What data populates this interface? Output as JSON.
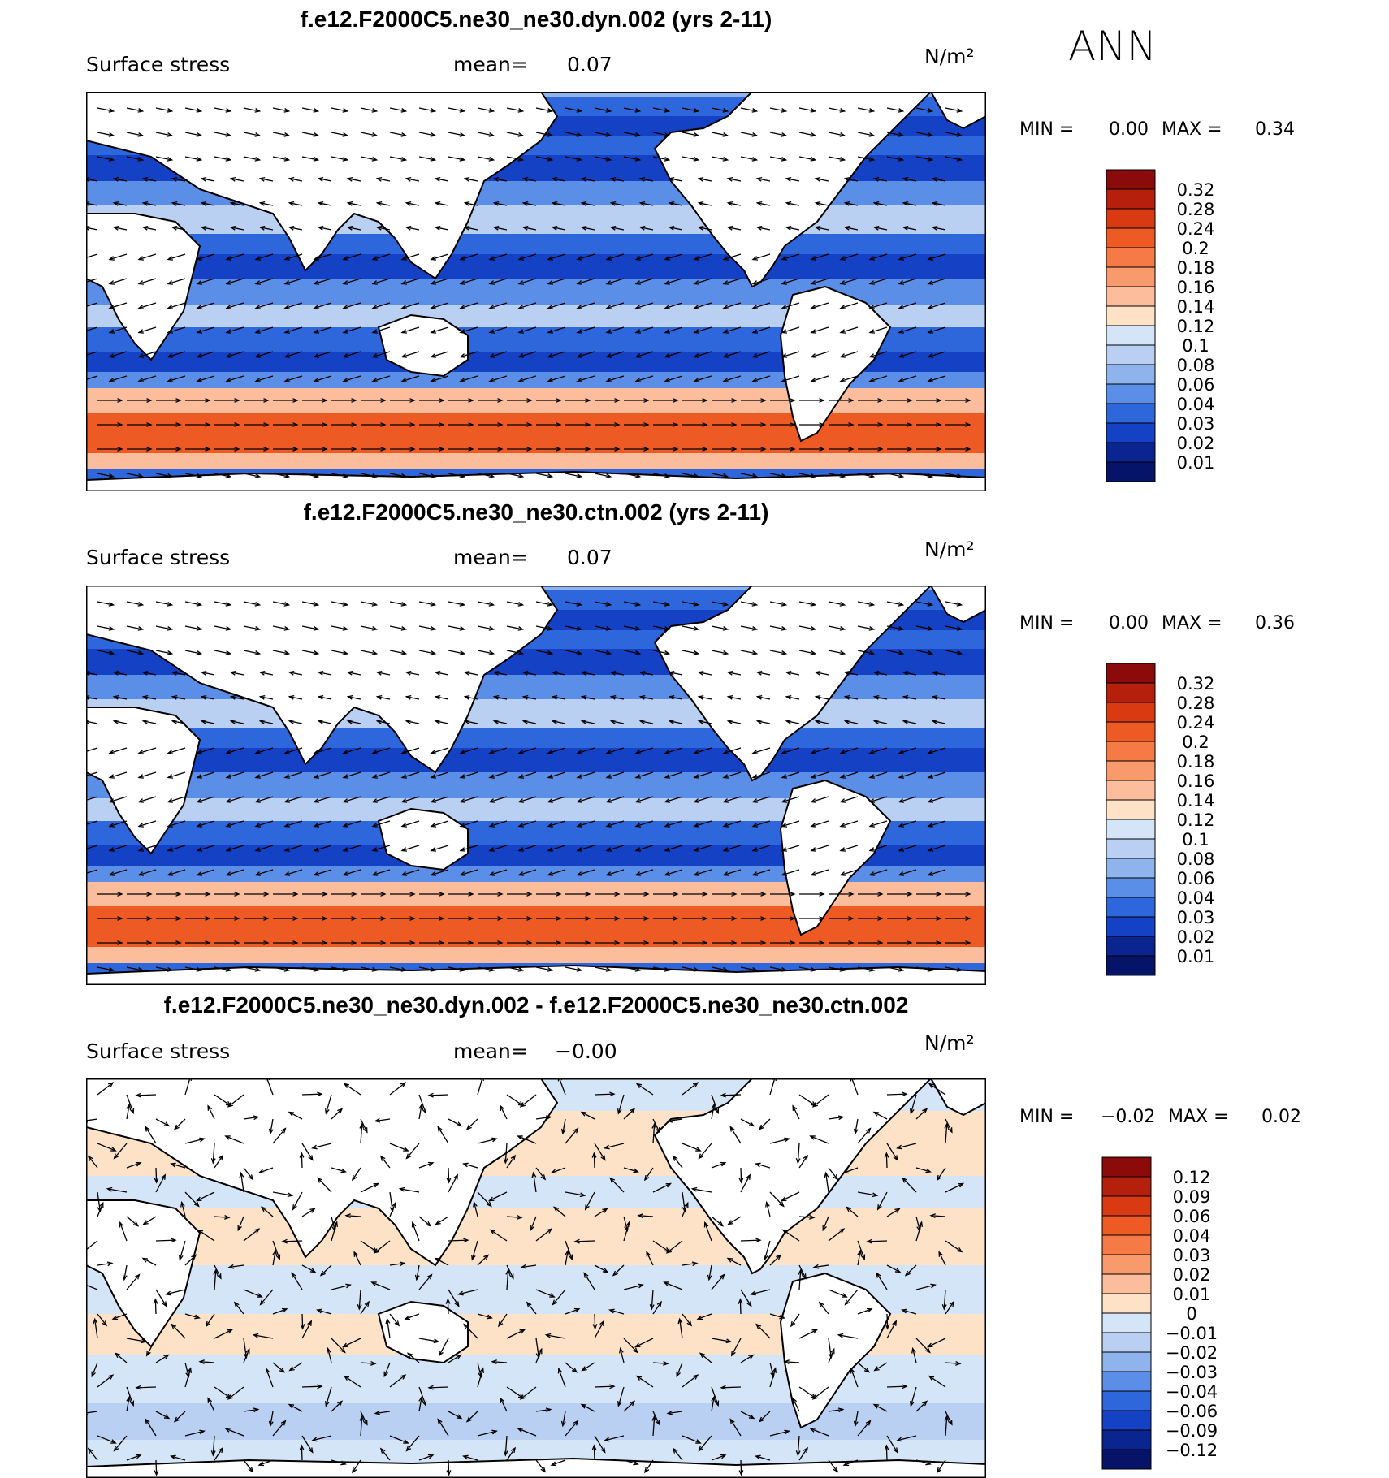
{
  "season": "ANN",
  "chart_data": [
    {
      "type": "heatmap",
      "title": "f.e12.F2000C5.ne30_ne30.dyn.002 (yrs 2-11)",
      "left_label": "Surface stress",
      "mean_label": "mean=",
      "mean_value": "0.07",
      "units": "N/m²",
      "min_label": "MIN =",
      "min_value": "0.00",
      "max_label": "MAX =",
      "max_value": "0.34",
      "colorbar_levels": [
        "0.32",
        "0.28",
        "0.24",
        "0.2",
        "0.18",
        "0.16",
        "0.14",
        "0.12",
        "0.1",
        "0.08",
        "0.06",
        "0.04",
        "0.03",
        "0.02",
        "0.01"
      ],
      "colorbar_colors": [
        "#8b0a0a",
        "#b5200d",
        "#d93a12",
        "#ee5a24",
        "#f57a45",
        "#f99a6d",
        "#fbbd9b",
        "#fde2c7",
        "#d5e5f8",
        "#b9d0f3",
        "#8fb3ec",
        "#5b8ee6",
        "#2e66dc",
        "#1541c4",
        "#0a2490",
        "#051468"
      ]
    },
    {
      "type": "heatmap",
      "title": "f.e12.F2000C5.ne30_ne30.ctn.002 (yrs 2-11)",
      "left_label": "Surface stress",
      "mean_label": "mean=",
      "mean_value": "0.07",
      "units": "N/m²",
      "min_label": "MIN =",
      "min_value": "0.00",
      "max_label": "MAX =",
      "max_value": "0.36",
      "colorbar_levels": [
        "0.32",
        "0.28",
        "0.24",
        "0.2",
        "0.18",
        "0.16",
        "0.14",
        "0.12",
        "0.1",
        "0.08",
        "0.06",
        "0.04",
        "0.03",
        "0.02",
        "0.01"
      ],
      "colorbar_colors": [
        "#8b0a0a",
        "#b5200d",
        "#d93a12",
        "#ee5a24",
        "#f57a45",
        "#f99a6d",
        "#fbbd9b",
        "#fde2c7",
        "#d5e5f8",
        "#b9d0f3",
        "#8fb3ec",
        "#5b8ee6",
        "#2e66dc",
        "#1541c4",
        "#0a2490",
        "#051468"
      ]
    },
    {
      "type": "heatmap",
      "title": "f.e12.F2000C5.ne30_ne30.dyn.002 - f.e12.F2000C5.ne30_ne30.ctn.002",
      "left_label": "Surface stress",
      "mean_label": "mean=",
      "mean_value": "−0.00",
      "units": "N/m²",
      "min_label": "MIN =",
      "min_value": "−0.02",
      "max_label": "MAX =",
      "max_value": "0.02",
      "colorbar_levels": [
        "0.12",
        "0.09",
        "0.06",
        "0.04",
        "0.03",
        "0.02",
        "0.01",
        "0",
        "−0.01",
        "−0.02",
        "−0.03",
        "−0.04",
        "−0.06",
        "−0.09",
        "−0.12"
      ],
      "colorbar_colors": [
        "#8b0a0a",
        "#b5200d",
        "#d93a12",
        "#ee5a24",
        "#f57a45",
        "#f99a6d",
        "#fbbd9b",
        "#fde2c7",
        "#d5e5f8",
        "#b9d0f3",
        "#8fb3ec",
        "#5b8ee6",
        "#2e66dc",
        "#1541c4",
        "#0a2490",
        "#051468"
      ]
    }
  ]
}
